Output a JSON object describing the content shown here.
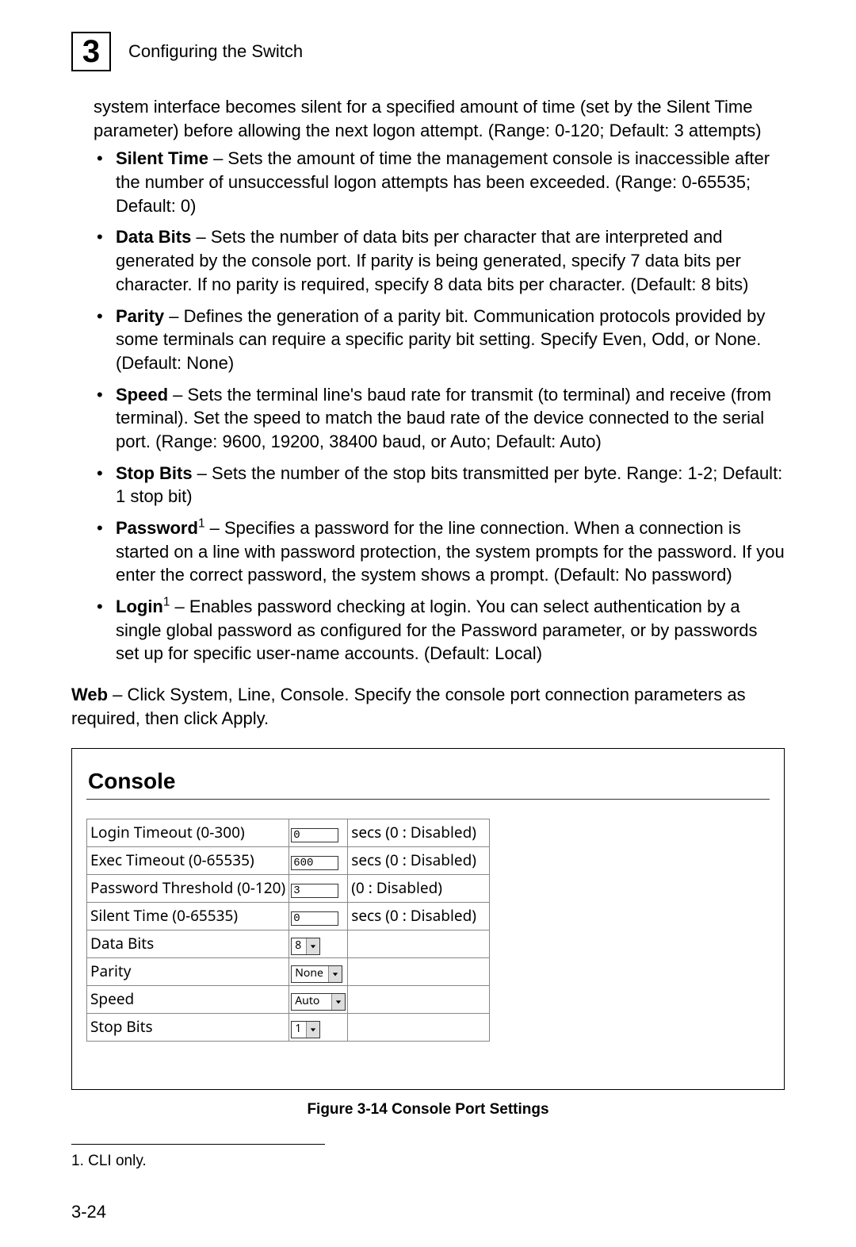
{
  "chapterNumber": "3",
  "headerTitle": "Configuring the Switch",
  "continuedParagraph": "system interface becomes silent for a specified amount of time (set by the Silent Time parameter) before allowing the next logon attempt. (Range: 0-120; Default: 3 attempts)",
  "bullets": [
    {
      "term": "Silent Time",
      "text": " – Sets the amount of time the management console is inaccessible after the number of unsuccessful logon attempts has been exceeded. (Range: 0-65535; Default: 0)"
    },
    {
      "term": "Data Bits",
      "text": " – Sets the number of data bits per character that are interpreted and generated by the console port. If parity is being generated, specify 7 data bits per character. If no parity is required, specify 8 data bits per character. (Default: 8 bits)"
    },
    {
      "term": "Parity",
      "text": " – Defines the generation of a parity bit. Communication protocols provided by some terminals can require a specific parity bit setting. Specify Even, Odd, or None. (Default: None)"
    },
    {
      "term": "Speed",
      "text": " – Sets the terminal line's baud rate for transmit (to terminal) and receive (from terminal). Set the speed to match the baud rate of the device connected to the serial port. (Range: 9600, 19200, 38400 baud, or Auto; Default: Auto)"
    },
    {
      "term": "Stop Bits",
      "text": " – Sets the number of the stop bits transmitted per byte. Range: 1-2; Default: 1 stop bit)"
    },
    {
      "term": "Password",
      "sup": "1",
      "text": " – Specifies a password for the line connection. When a connection is started on a line with password protection, the system prompts for the password. If you enter the correct password, the system shows a prompt. (Default: No password)"
    },
    {
      "term": "Login",
      "sup": "1",
      "text": " – Enables password checking at login. You can select authentication by a single global password as configured for the Password parameter, or by passwords set up for specific user-name accounts. (Default: Local)"
    }
  ],
  "webLeadBold": "Web",
  "webLeadText": " – Click System, Line, Console. Specify the console port connection parameters as required, then click Apply.",
  "figureTitle": "Console",
  "tableRows": [
    {
      "label": "Login Timeout (0-300)",
      "kind": "text",
      "value": "0",
      "suffix": "secs (0 : Disabled)"
    },
    {
      "label": "Exec Timeout (0-65535)",
      "kind": "text",
      "value": "600",
      "suffix": "secs (0 : Disabled)"
    },
    {
      "label": "Password Threshold (0-120)",
      "kind": "text",
      "value": "3",
      "suffix": "(0 : Disabled)"
    },
    {
      "label": "Silent Time (0-65535)",
      "kind": "text",
      "value": "0",
      "suffix": "secs (0 : Disabled)"
    },
    {
      "label": "Data Bits",
      "kind": "select",
      "value": "8",
      "suffix": ""
    },
    {
      "label": "Parity",
      "kind": "select",
      "value": "None",
      "suffix": ""
    },
    {
      "label": "Speed",
      "kind": "select",
      "value": "Auto",
      "wide": true,
      "suffix": ""
    },
    {
      "label": "Stop Bits",
      "kind": "select",
      "value": "1",
      "suffix": ""
    }
  ],
  "figureCaption": "Figure 3-14  Console Port Settings",
  "footnote": "1. CLI only.",
  "pageNumber": "3-24"
}
